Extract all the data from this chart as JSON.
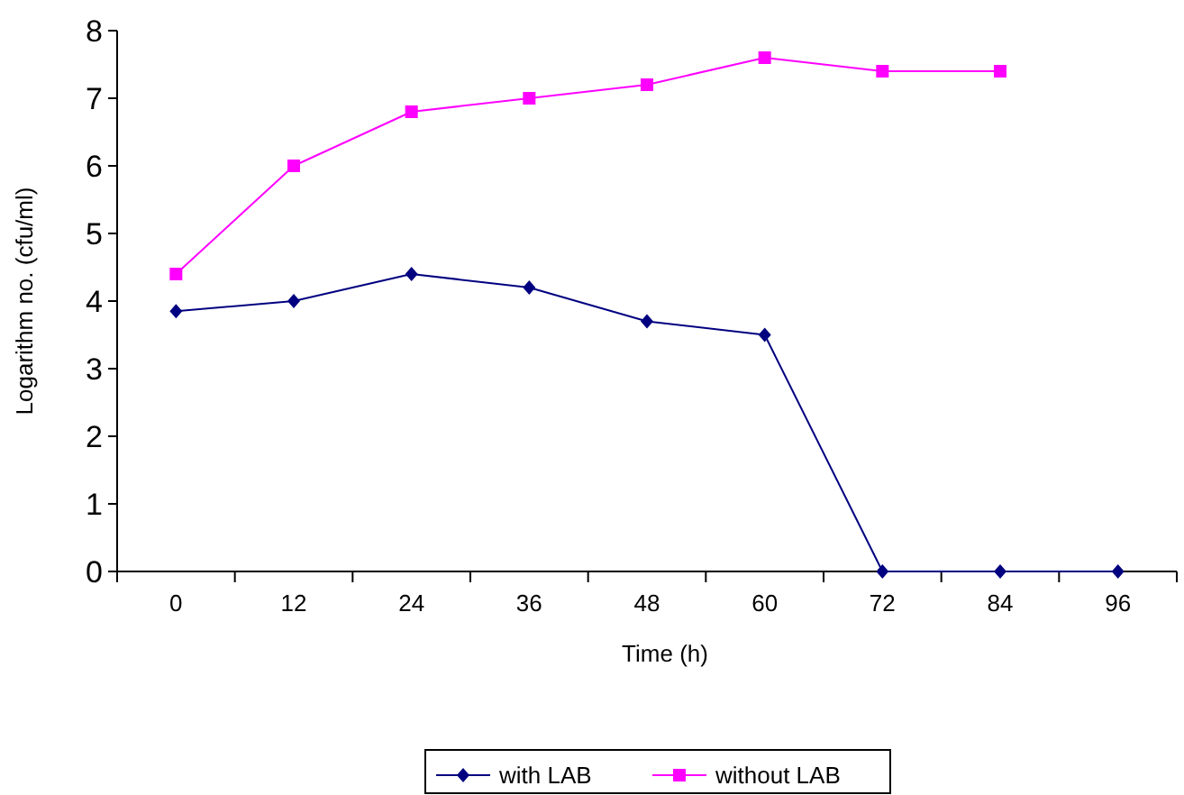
{
  "chart_data": {
    "type": "line",
    "xlabel": "Time (h)",
    "ylabel": "Logarithm no. (cfu/ml)",
    "categories": [
      "0",
      "12",
      "24",
      "36",
      "48",
      "60",
      "72",
      "84",
      "96"
    ],
    "ylim": [
      0,
      8
    ],
    "yticks": [
      0,
      1,
      2,
      3,
      4,
      5,
      6,
      7,
      8
    ],
    "grid": false,
    "legend": "bottom",
    "series": [
      {
        "name": "with LAB",
        "color": "#000080",
        "marker": "diamond",
        "values": [
          3.85,
          4.0,
          4.4,
          4.2,
          3.7,
          3.5,
          0,
          0,
          0
        ]
      },
      {
        "name": "without LAB",
        "color": "#ff00ff",
        "marker": "square",
        "values": [
          4.4,
          6.0,
          6.8,
          7.0,
          7.2,
          7.6,
          7.4,
          7.4,
          null
        ]
      }
    ]
  }
}
